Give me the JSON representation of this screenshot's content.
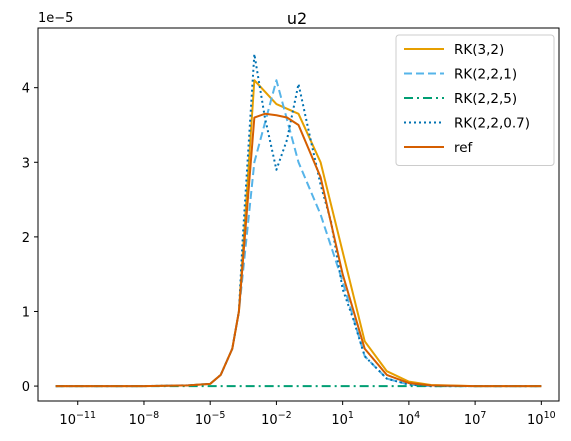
{
  "chart_data": {
    "type": "line",
    "title": "u2",
    "xscale": "log",
    "xlim_log10": [
      -12.8,
      10.8
    ],
    "ylim": [
      -2e-06,
      4.8e-05
    ],
    "y_offset_label": "1e−5",
    "x_ticks": [
      {
        "value": 1e-11,
        "base": "10",
        "exp": "−11"
      },
      {
        "value": 1e-08,
        "base": "10",
        "exp": "−8"
      },
      {
        "value": 1e-05,
        "base": "10",
        "exp": "−5"
      },
      {
        "value": 0.01,
        "base": "10",
        "exp": "−2"
      },
      {
        "value": 10,
        "base": "10",
        "exp": "1"
      },
      {
        "value": 10000.0,
        "base": "10",
        "exp": "4"
      },
      {
        "value": 10000000.0,
        "base": "10",
        "exp": "7"
      },
      {
        "value": 10000000000.0,
        "base": "10",
        "exp": "10"
      }
    ],
    "y_ticks": [
      {
        "value": 0,
        "label": "0"
      },
      {
        "value": 1e-05,
        "label": "1"
      },
      {
        "value": 2e-05,
        "label": "2"
      },
      {
        "value": 3e-05,
        "label": "3"
      },
      {
        "value": 4e-05,
        "label": "4"
      }
    ],
    "grid": false,
    "legend_position": "top-right",
    "series": [
      {
        "name": "RK(3,2)",
        "color": "#e69f00",
        "dash": "solid",
        "x": [
          1e-12,
          1e-08,
          1e-06,
          1e-05,
          3e-05,
          0.0001,
          0.0002,
          0.001,
          0.01,
          0.1,
          1,
          10,
          100.0,
          1000.0,
          10000.0,
          100000.0,
          10000000.0,
          10000000000.0
        ],
        "y": [
          0,
          0,
          1e-07,
          3e-07,
          1.5e-06,
          5e-06,
          1e-05,
          4.1e-05,
          3.78e-05,
          3.65e-05,
          3e-05,
          1.8e-05,
          6e-06,
          2e-06,
          6e-07,
          1.5e-07,
          0,
          0
        ]
      },
      {
        "name": "RK(2,2,1)",
        "color": "#56b4e9",
        "dash": "dashed",
        "x": [
          1e-12,
          1e-08,
          1e-06,
          1e-05,
          3e-05,
          0.0001,
          0.0002,
          0.001,
          0.01,
          0.1,
          1,
          10,
          100.0,
          1000.0,
          10000.0,
          100000.0,
          10000000.0,
          10000000000.0
        ],
        "y": [
          0,
          0,
          1e-07,
          3e-07,
          1.5e-06,
          5e-06,
          1e-05,
          3e-05,
          4.1e-05,
          3e-05,
          2.3e-05,
          1.4e-05,
          4e-06,
          1e-06,
          2e-07,
          0,
          0,
          0
        ]
      },
      {
        "name": "RK(2,2,5)",
        "color": "#009e73",
        "dash": "dashdot",
        "x": [
          1e-12,
          1e-08,
          1e-05,
          0.001,
          1,
          10000.0,
          10000000.0,
          10000000000.0
        ],
        "y": [
          0,
          0,
          0,
          0,
          0,
          0,
          0,
          0
        ]
      },
      {
        "name": "RK(2,2,0.7)",
        "color": "#0072b2",
        "dash": "dotted",
        "x": [
          1e-12,
          1e-08,
          1e-06,
          1e-05,
          3e-05,
          0.0001,
          0.0002,
          0.0003,
          0.001,
          0.003,
          0.01,
          0.03,
          0.1,
          0.3,
          1,
          3,
          10,
          30,
          100.0,
          1000.0,
          10000.0,
          100000.0,
          10000000.0,
          10000000000.0
        ],
        "y": [
          0,
          0,
          1e-07,
          3e-07,
          1.5e-06,
          5e-06,
          1e-05,
          2e-05,
          4.45e-05,
          3.6e-05,
          2.9e-05,
          3.3e-05,
          4.05e-05,
          3.4e-05,
          2.7e-05,
          2.2e-05,
          1.3e-05,
          9e-06,
          4e-06,
          1e-06,
          2e-07,
          0,
          0,
          0
        ]
      },
      {
        "name": "ref",
        "color": "#d55e00",
        "dash": "solid",
        "x": [
          1e-12,
          1e-08,
          1e-06,
          1e-05,
          3e-05,
          0.0001,
          0.0002,
          0.001,
          0.003,
          0.01,
          0.03,
          0.1,
          1,
          10,
          100.0,
          1000.0,
          10000.0,
          100000.0,
          10000000.0,
          10000000000.0
        ],
        "y": [
          0,
          0,
          1e-07,
          3e-07,
          1.5e-06,
          5e-06,
          1e-05,
          3.6e-05,
          3.65e-05,
          3.63e-05,
          3.6e-05,
          3.5e-05,
          2.8e-05,
          1.5e-05,
          5e-06,
          1.5e-06,
          4e-07,
          1e-07,
          0,
          0
        ]
      }
    ]
  }
}
